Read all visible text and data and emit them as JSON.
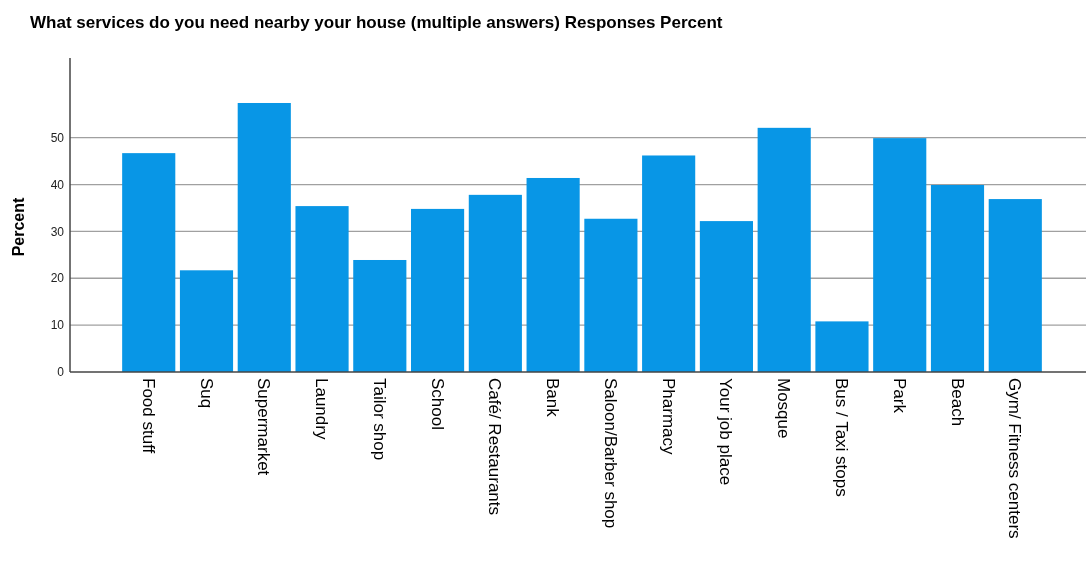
{
  "chart_data": {
    "type": "bar",
    "title": "What services do you need nearby your house (multiple answers) Responses Percent",
    "ylabel": "Percent",
    "categories": [
      "Food stuff",
      "Suq",
      "Supermarket",
      "Laundry",
      "Tailor shop",
      "School",
      "Café/ Restaurants",
      "Bank",
      "Saloon/Barber shop",
      "Pharmacy",
      "Your job place",
      "Mosque",
      "Bus / Taxi stops",
      "Park",
      "Beach",
      "Gym/ Fitness centers"
    ],
    "values": [
      46.7,
      21.7,
      57.4,
      35.4,
      23.9,
      34.8,
      37.8,
      41.4,
      32.7,
      46.2,
      32.2,
      52.1,
      10.8,
      49.9,
      39.9,
      36.9
    ],
    "color": "#0896e6",
    "ylim": [
      0,
      67
    ],
    "yticks": [
      0,
      10,
      20,
      30,
      40,
      50
    ],
    "grid": "y"
  }
}
